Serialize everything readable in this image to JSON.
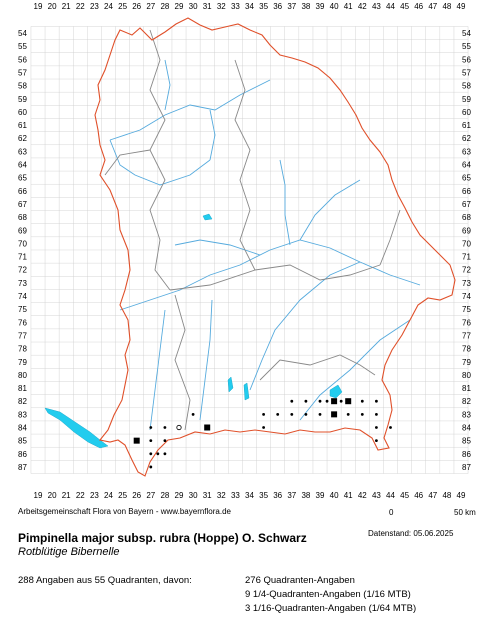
{
  "map": {
    "top_numbers": [
      "19",
      "20",
      "21",
      "22",
      "23",
      "24",
      "25",
      "26",
      "27",
      "28",
      "29",
      "30",
      "31",
      "32",
      "33",
      "34",
      "35",
      "36",
      "37",
      "38",
      "39",
      "40",
      "41",
      "42",
      "43",
      "44",
      "45",
      "46",
      "47",
      "48",
      "49"
    ],
    "side_numbers": [
      "54",
      "55",
      "56",
      "57",
      "58",
      "59",
      "60",
      "61",
      "62",
      "63",
      "64",
      "65",
      "66",
      "67",
      "68",
      "69",
      "70",
      "71",
      "72",
      "73",
      "74",
      "75",
      "76",
      "77",
      "78",
      "79",
      "80",
      "81",
      "82",
      "83",
      "84",
      "85",
      "86",
      "87"
    ],
    "colors": {
      "border": "#e0502a",
      "regions": "#888888",
      "rivers": "#55aadd",
      "lakes": "#22ccee",
      "grid": "#cccccc",
      "dots": "#000000"
    },
    "occurrences": [
      {
        "col": 39,
        "row": 82,
        "symbol": "dot"
      },
      {
        "col": 39.5,
        "row": 82,
        "symbol": "dot"
      },
      {
        "col": 40,
        "row": 82,
        "symbol": "square"
      },
      {
        "col": 41,
        "row": 82,
        "symbol": "square"
      },
      {
        "col": 42,
        "row": 82,
        "symbol": "dot"
      },
      {
        "col": 43,
        "row": 82,
        "symbol": "dot"
      },
      {
        "col": 37,
        "row": 82,
        "symbol": "dot"
      },
      {
        "col": 38,
        "row": 82,
        "symbol": "dot"
      },
      {
        "col": 40.5,
        "row": 82,
        "symbol": "dot"
      },
      {
        "col": 36,
        "row": 83,
        "symbol": "dot"
      },
      {
        "col": 37,
        "row": 83,
        "symbol": "dot"
      },
      {
        "col": 38,
        "row": 83,
        "symbol": "dot"
      },
      {
        "col": 39,
        "row": 83,
        "symbol": "dot"
      },
      {
        "col": 40,
        "row": 83,
        "symbol": "square"
      },
      {
        "col": 41,
        "row": 83,
        "symbol": "dot"
      },
      {
        "col": 42,
        "row": 83,
        "symbol": "dot"
      },
      {
        "col": 35,
        "row": 83,
        "symbol": "dot"
      },
      {
        "col": 43,
        "row": 83,
        "symbol": "dot"
      },
      {
        "col": 35,
        "row": 84,
        "symbol": "dot"
      },
      {
        "col": 43,
        "row": 84,
        "symbol": "dot"
      },
      {
        "col": 44,
        "row": 84,
        "symbol": "dot"
      },
      {
        "col": 43,
        "row": 85,
        "symbol": "dot"
      },
      {
        "col": 30,
        "row": 83,
        "symbol": "dot"
      },
      {
        "col": 31,
        "row": 84,
        "symbol": "square"
      },
      {
        "col": 27,
        "row": 84,
        "symbol": "dot"
      },
      {
        "col": 28,
        "row": 84,
        "symbol": "dot"
      },
      {
        "col": 29,
        "row": 84,
        "symbol": "circle"
      },
      {
        "col": 26,
        "row": 85,
        "symbol": "square"
      },
      {
        "col": 27,
        "row": 85,
        "symbol": "dot"
      },
      {
        "col": 28,
        "row": 85,
        "symbol": "dot"
      },
      {
        "col": 27,
        "row": 86,
        "symbol": "dot"
      },
      {
        "col": 28,
        "row": 86,
        "symbol": "dot"
      },
      {
        "col": 27.5,
        "row": 86,
        "symbol": "dot"
      },
      {
        "col": 27,
        "row": 87,
        "symbol": "dot"
      }
    ]
  },
  "credit": "Arbeitsgemeinschaft Flora von Bayern - www.bayernflora.de",
  "scale": {
    "zero": "0",
    "end": "50 km"
  },
  "date": "Datenstand: 05.06.2025",
  "species": {
    "title": "Pimpinella major subsp. rubra (Hoppe) O. Schwarz",
    "common_name": "Rotblütige Bibernelle"
  },
  "stats": {
    "summary": "288 Angaben aus 55 Quadranten, davon:",
    "line1": "276 Quadranten-Angaben",
    "line2": "9 1/4-Quadranten-Angaben (1/16 MTB)",
    "line3": "3 1/16-Quadranten-Angaben (1/64 MTB)"
  }
}
